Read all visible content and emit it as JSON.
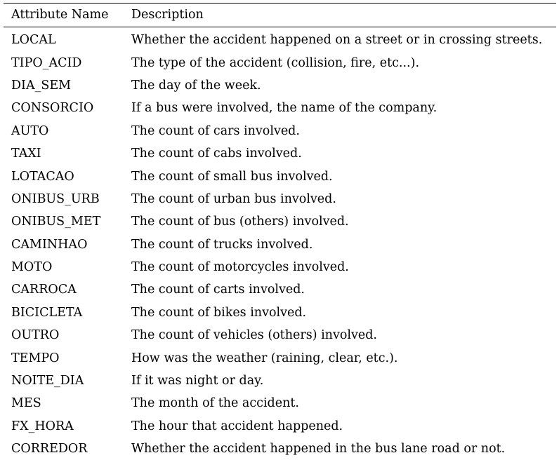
{
  "table": {
    "headers": [
      "Attribute Name",
      "Description"
    ],
    "rows": [
      {
        "name": "LOCAL",
        "description": "Whether the accident happened on a street or in crossing streets."
      },
      {
        "name": "TIPO_ACID",
        "description": "The type of the accident (collision, fire, etc...)."
      },
      {
        "name": "DIA_SEM",
        "description": "The day of the week."
      },
      {
        "name": "CONSORCIO",
        "description": "If a bus were involved, the name of the company."
      },
      {
        "name": "AUTO",
        "description": "The count of cars involved."
      },
      {
        "name": "TAXI",
        "description": "The count of cabs involved."
      },
      {
        "name": "LOTACAO",
        "description": "The count of small bus involved."
      },
      {
        "name": "ONIBUS_URB",
        "description": "The count of urban bus involved."
      },
      {
        "name": "ONIBUS_MET",
        "description": "The count of bus (others) involved."
      },
      {
        "name": "CAMINHAO",
        "description": "The count of trucks involved."
      },
      {
        "name": "MOTO",
        "description": "The count of motorcycles involved."
      },
      {
        "name": "CARROCA",
        "description": "The count of carts involved."
      },
      {
        "name": "BICICLETA",
        "description": "The count of bikes involved."
      },
      {
        "name": "OUTRO",
        "description": "The count of vehicles (others) involved."
      },
      {
        "name": "TEMPO",
        "description": "How was the weather (raining, clear, etc.)."
      },
      {
        "name": "NOITE_DIA",
        "description": "If it was night or day."
      },
      {
        "name": "MES",
        "description": "The month of the accident."
      },
      {
        "name": "FX_HORA",
        "description": "The hour that accident happened."
      },
      {
        "name": "CORREDOR",
        "description": "Whether the accident happened in the bus lane road or not."
      }
    ]
  }
}
